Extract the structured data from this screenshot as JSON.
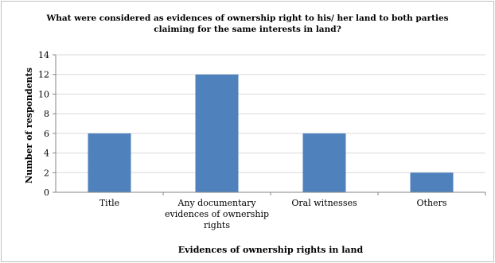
{
  "chart_data": {
    "type": "bar",
    "title": "What were considered as evidences of ownership right to his/ her land to both parties claiming for the same interests in land?",
    "title_lines": [
      "What were considered as evidences of ownership right to his/ her land to both parties",
      "claiming for the same interests in land?"
    ],
    "categories": [
      "Title",
      "Any documentary evidences of ownership rights",
      "Oral witnesses",
      "Others"
    ],
    "category_lines": [
      [
        "Title"
      ],
      [
        "Any documentary",
        "evidences of ownership",
        "rights"
      ],
      [
        "Oral witnesses"
      ],
      [
        "Others"
      ]
    ],
    "values": [
      6,
      12,
      6,
      2
    ],
    "xlabel": "Evidences of ownership rights in land",
    "ylabel": "Number of respondents",
    "ylim": [
      0,
      14
    ],
    "yticks": [
      0,
      2,
      4,
      6,
      8,
      10,
      12,
      14
    ],
    "grid": true,
    "legend": "none",
    "bar_color": "#4f81bd"
  }
}
